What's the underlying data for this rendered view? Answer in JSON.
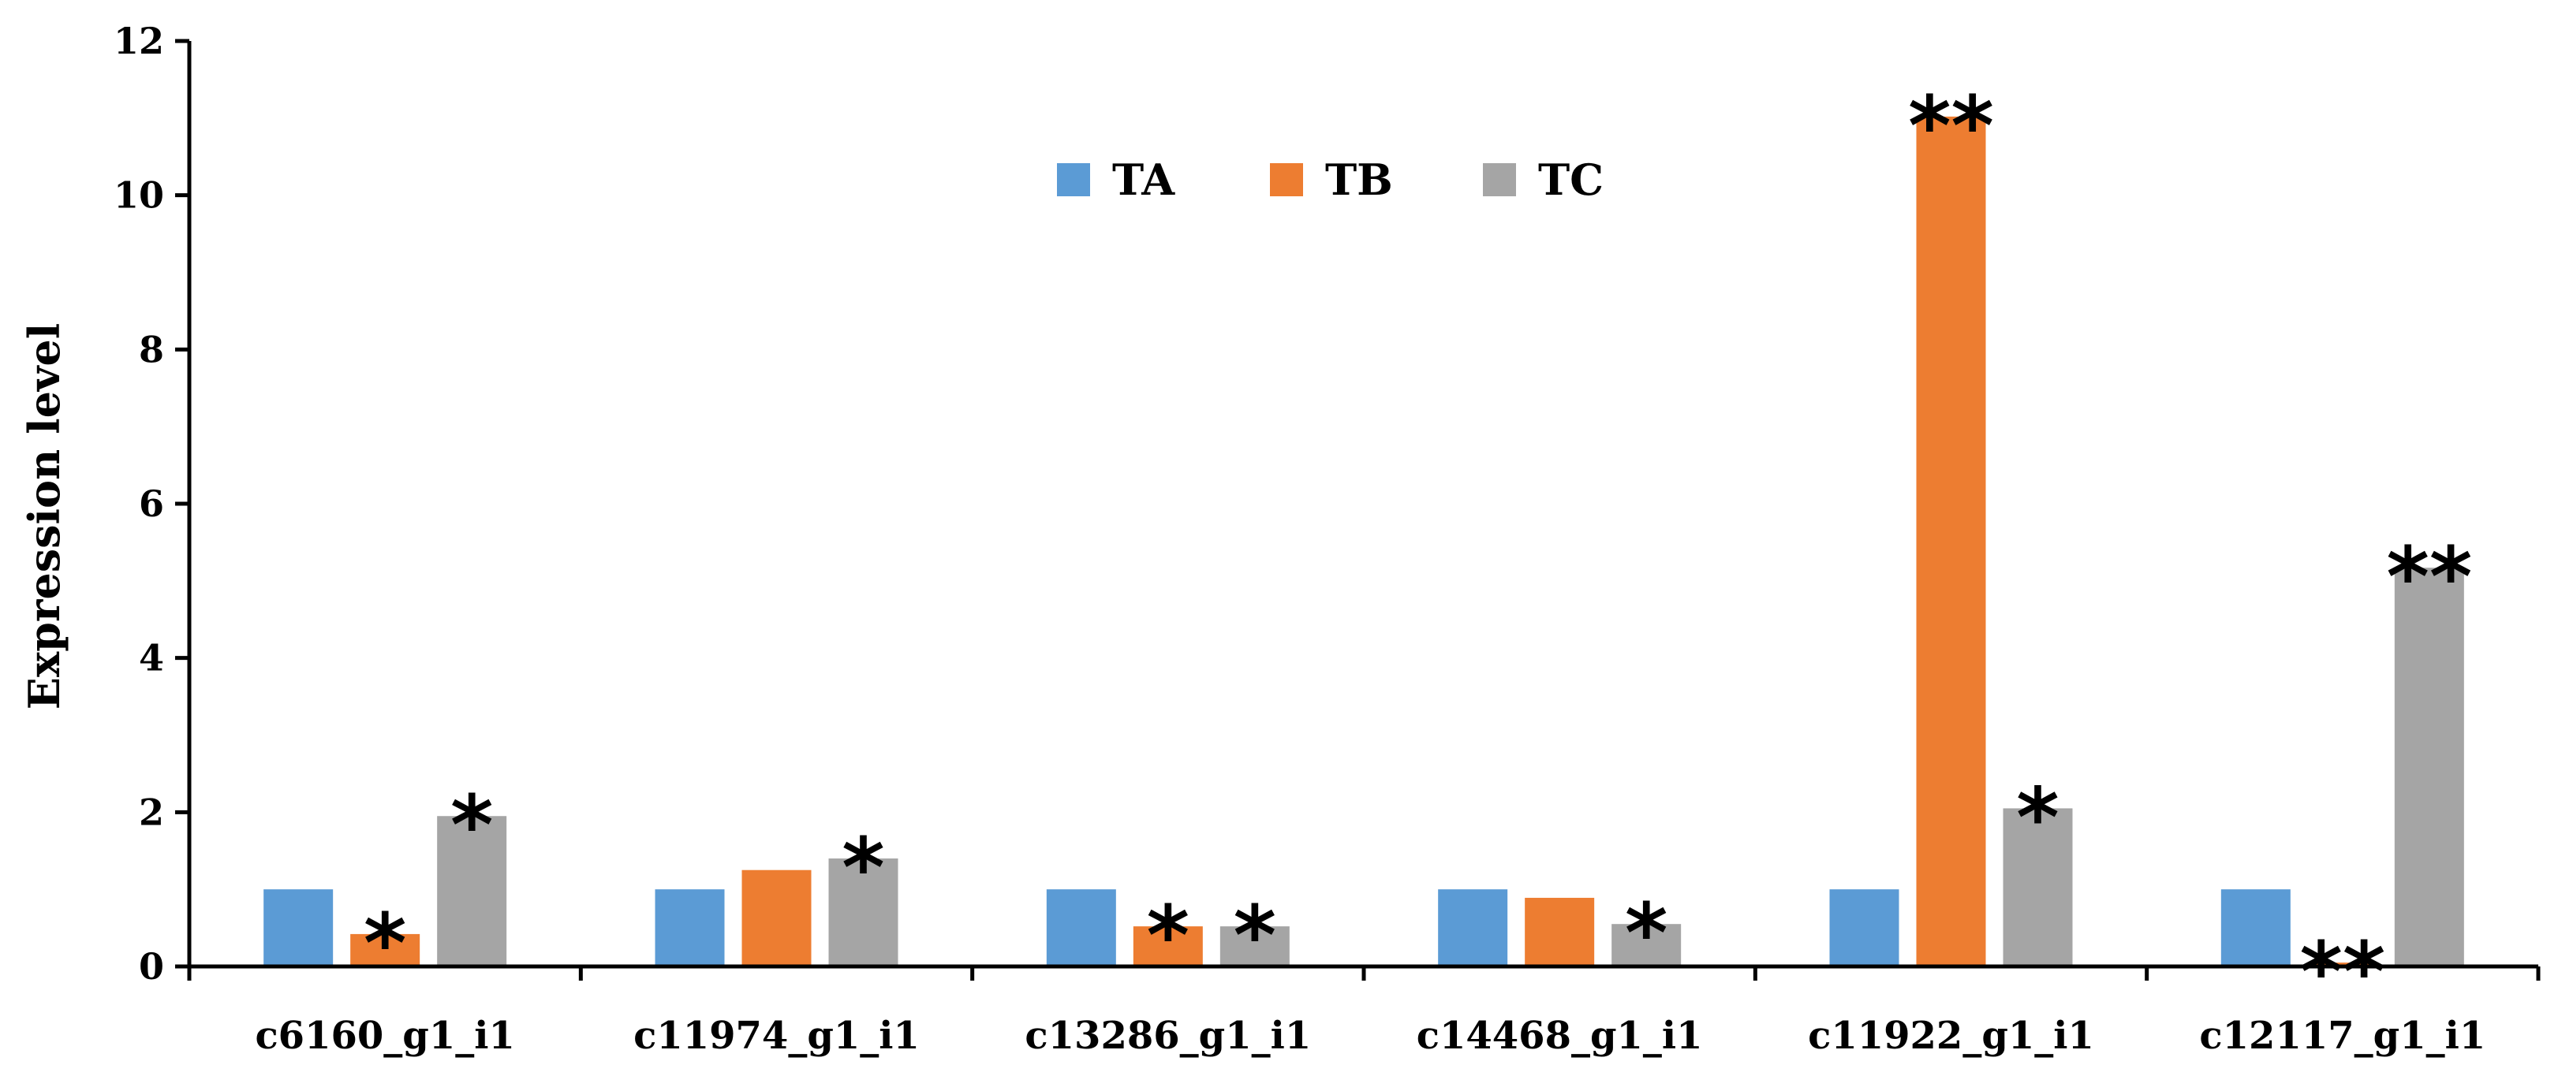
{
  "chart_data": {
    "type": "bar",
    "title": "",
    "xlabel": "",
    "ylabel": "Expression level",
    "ylim": [
      0,
      12
    ],
    "yticks": [
      0,
      2,
      4,
      6,
      8,
      10,
      12
    ],
    "grid": false,
    "legend_position": "top-center",
    "categories": [
      "c6160_g1_i1",
      "c11974_g1_i1",
      "c13286_g1_i1",
      "c14468_g1_i1",
      "c11922_g1_i1",
      "c12117_g1_i1"
    ],
    "series": [
      {
        "name": "TA",
        "color": "#5b9bd5",
        "values": [
          1.0,
          1.0,
          1.0,
          1.0,
          1.0,
          1.0
        ],
        "significance": [
          "",
          "",
          "",
          "",
          "",
          ""
        ]
      },
      {
        "name": "TB",
        "color": "#ed7d31",
        "values": [
          0.42,
          1.25,
          0.52,
          0.89,
          11.02,
          0.05
        ],
        "significance": [
          "*",
          "",
          "*",
          "",
          "**",
          "**"
        ]
      },
      {
        "name": "TC",
        "color": "#a5a5a5",
        "values": [
          1.95,
          1.4,
          0.52,
          0.55,
          2.05,
          5.17
        ],
        "significance": [
          "*",
          "*",
          "*",
          "*",
          "*",
          "**"
        ]
      }
    ]
  }
}
